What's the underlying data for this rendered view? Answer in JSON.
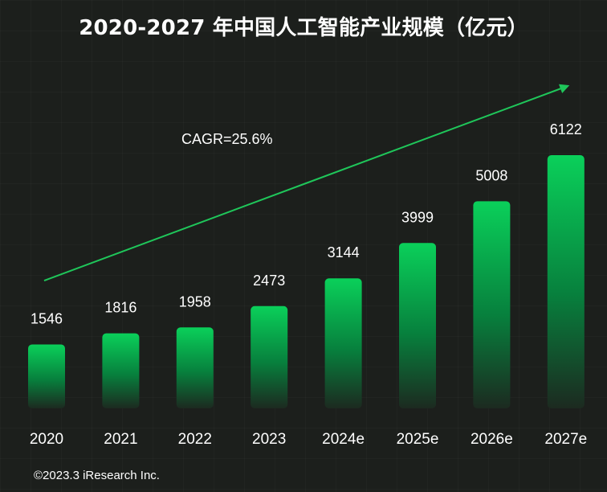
{
  "chart_data": {
    "type": "bar",
    "title": "2020-2027 年中国人工智能产业规模（亿元）",
    "categories": [
      "2020",
      "2021",
      "2022",
      "2023",
      "2024e",
      "2025e",
      "2026e",
      "2027e"
    ],
    "values": [
      1546,
      1816,
      1958,
      2473,
      3144,
      3999,
      5008,
      6122
    ],
    "annotation": "CAGR=25.6%",
    "xlabel": "",
    "ylabel": "",
    "grid": false,
    "legend": "none"
  },
  "source": "©2023.3 iResearch Inc.",
  "colors": {
    "background": "#1c1f1c",
    "bar_top": "#0ad05a",
    "bar_mid": "#07803d",
    "bar_bottom": "#1c2a20",
    "arrow": "#1fc65a",
    "text": "#ffffff"
  }
}
